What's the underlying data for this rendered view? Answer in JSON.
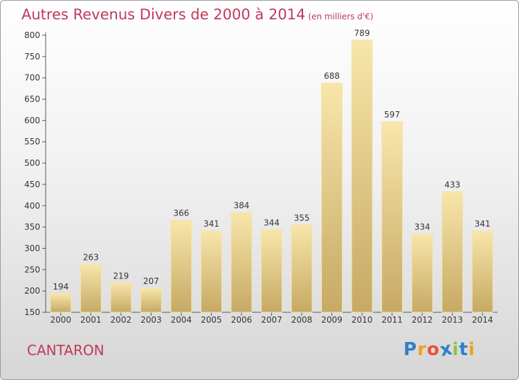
{
  "title": "Autres Revenus Divers de 2000 à 2014",
  "subtitle": "(en milliers d'€)",
  "place": "CANTARON",
  "logo": {
    "letters": [
      "P",
      "r",
      "o",
      "x",
      "i",
      "t",
      "i"
    ],
    "colors": [
      "#2f7fc8",
      "#f0a21a",
      "#e8533a",
      "#2f7fc8",
      "#8cc63f",
      "#2f7fc8",
      "#f0a21a"
    ]
  },
  "colors": {
    "accent": "#c0395a",
    "bar_light": "#f6e2a4",
    "bar_dark": "#c5a862"
  },
  "chart_data": {
    "type": "bar",
    "categories": [
      "2000",
      "2001",
      "2002",
      "2003",
      "2004",
      "2005",
      "2006",
      "2007",
      "2008",
      "2009",
      "2010",
      "2011",
      "2012",
      "2013",
      "2014"
    ],
    "values": [
      194,
      263,
      219,
      207,
      366,
      341,
      384,
      344,
      355,
      688,
      789,
      597,
      334,
      433,
      341
    ],
    "ylim": [
      150,
      800
    ],
    "yticks": [
      150,
      200,
      250,
      300,
      350,
      400,
      450,
      500,
      550,
      600,
      650,
      700,
      750,
      800
    ],
    "grid": false,
    "data_labels": true
  }
}
